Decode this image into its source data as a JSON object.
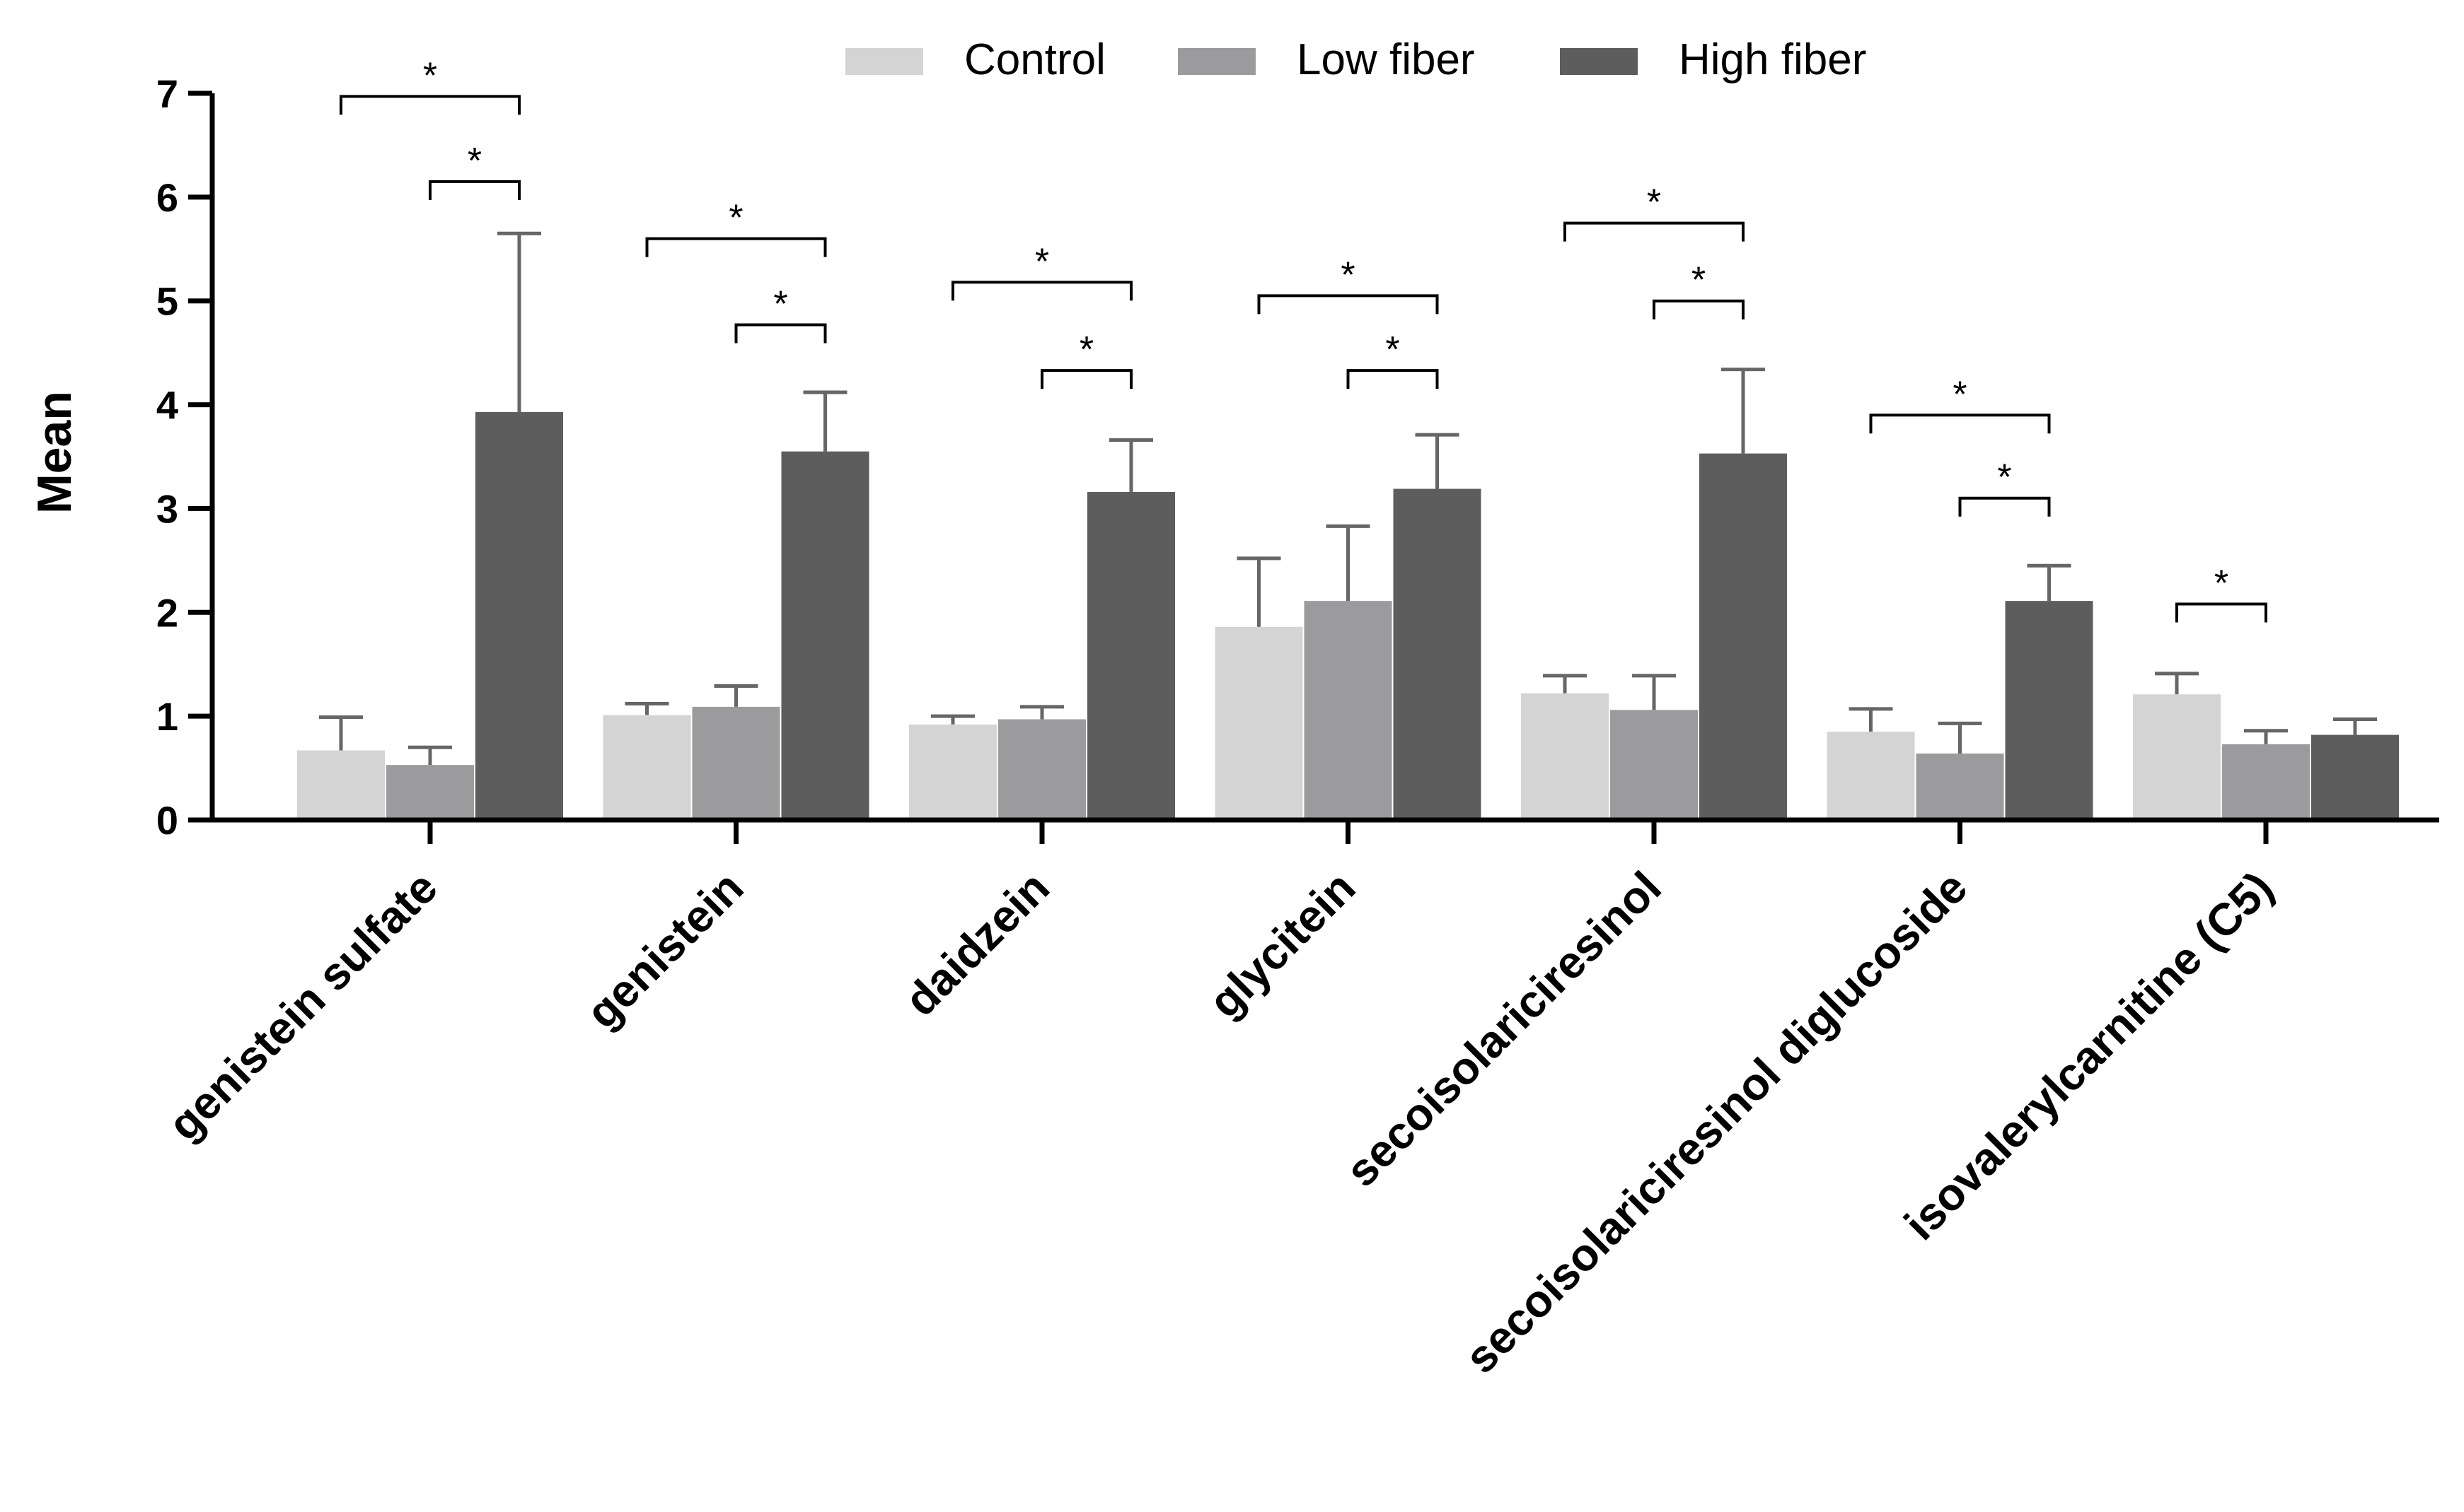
{
  "chart_data": {
    "type": "bar",
    "title": "",
    "xlabel": "",
    "ylabel": "Mean",
    "ylim": [
      0,
      7
    ],
    "yticks": [
      0,
      1,
      2,
      3,
      4,
      5,
      6,
      7
    ],
    "legend_position": "top-center",
    "categories": [
      "genistein sulfate",
      "genistein",
      "daidzein",
      "glycitein",
      "secoisolariciresinol",
      "secoisolariciresinol diglucoside",
      "isovalerylcarnitine (C5)"
    ],
    "series": [
      {
        "name": "Control",
        "color": "#d4d4d4",
        "values": [
          0.67,
          1.01,
          0.92,
          1.86,
          1.22,
          0.85,
          1.21
        ],
        "errors": [
          0.32,
          0.11,
          0.08,
          0.66,
          0.17,
          0.22,
          0.2
        ]
      },
      {
        "name": "Low fiber",
        "color": "#9b9b9e",
        "values": [
          0.53,
          1.09,
          0.97,
          2.11,
          1.06,
          0.64,
          0.73
        ],
        "errors": [
          0.17,
          0.2,
          0.12,
          0.72,
          0.33,
          0.29,
          0.13
        ]
      },
      {
        "name": "High fiber",
        "color": "#5d5d5d",
        "values": [
          3.93,
          3.55,
          3.16,
          3.19,
          3.53,
          2.11,
          0.82
        ],
        "errors": [
          1.72,
          0.57,
          0.5,
          0.52,
          0.81,
          0.34,
          0.15
        ]
      }
    ],
    "significance": [
      {
        "category": 0,
        "from": 0,
        "to": 2,
        "y": 6.97,
        "label": "*"
      },
      {
        "category": 0,
        "from": 1,
        "to": 2,
        "y": 6.15,
        "label": "*"
      },
      {
        "category": 1,
        "from": 0,
        "to": 2,
        "y": 5.6,
        "label": "*"
      },
      {
        "category": 1,
        "from": 1,
        "to": 2,
        "y": 4.77,
        "label": "*"
      },
      {
        "category": 2,
        "from": 0,
        "to": 2,
        "y": 5.18,
        "label": "*"
      },
      {
        "category": 2,
        "from": 1,
        "to": 2,
        "y": 4.33,
        "label": "*"
      },
      {
        "category": 3,
        "from": 0,
        "to": 2,
        "y": 5.05,
        "label": "*"
      },
      {
        "category": 3,
        "from": 1,
        "to": 2,
        "y": 4.33,
        "label": "*"
      },
      {
        "category": 4,
        "from": 0,
        "to": 2,
        "y": 5.75,
        "label": "*"
      },
      {
        "category": 4,
        "from": 1,
        "to": 2,
        "y": 5.0,
        "label": "*"
      },
      {
        "category": 5,
        "from": 0,
        "to": 2,
        "y": 3.9,
        "label": "*"
      },
      {
        "category": 5,
        "from": 1,
        "to": 2,
        "y": 3.1,
        "label": "*"
      },
      {
        "category": 6,
        "from": 0,
        "to": 1,
        "y": 2.08,
        "label": "*"
      }
    ]
  }
}
